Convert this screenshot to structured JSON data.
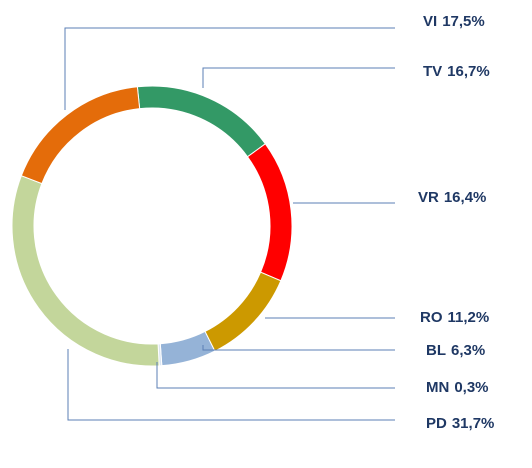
{
  "chart_data": {
    "type": "donut",
    "categories": [
      "TV",
      "VR",
      "RO",
      "BL",
      "MN",
      "PD",
      "VI"
    ],
    "values": [
      16.7,
      16.4,
      11.2,
      6.3,
      0.3,
      31.7,
      17.5
    ],
    "value_labels": [
      "16,7%",
      "16,4%",
      "11,2%",
      "6,3%",
      "0,3%",
      "31,7%",
      "17,5%"
    ],
    "colors": [
      "#339966",
      "#ff0000",
      "#cc9900",
      "#95b3d7",
      "#dce6f2",
      "#c3d69b",
      "#e46c0a"
    ]
  }
}
